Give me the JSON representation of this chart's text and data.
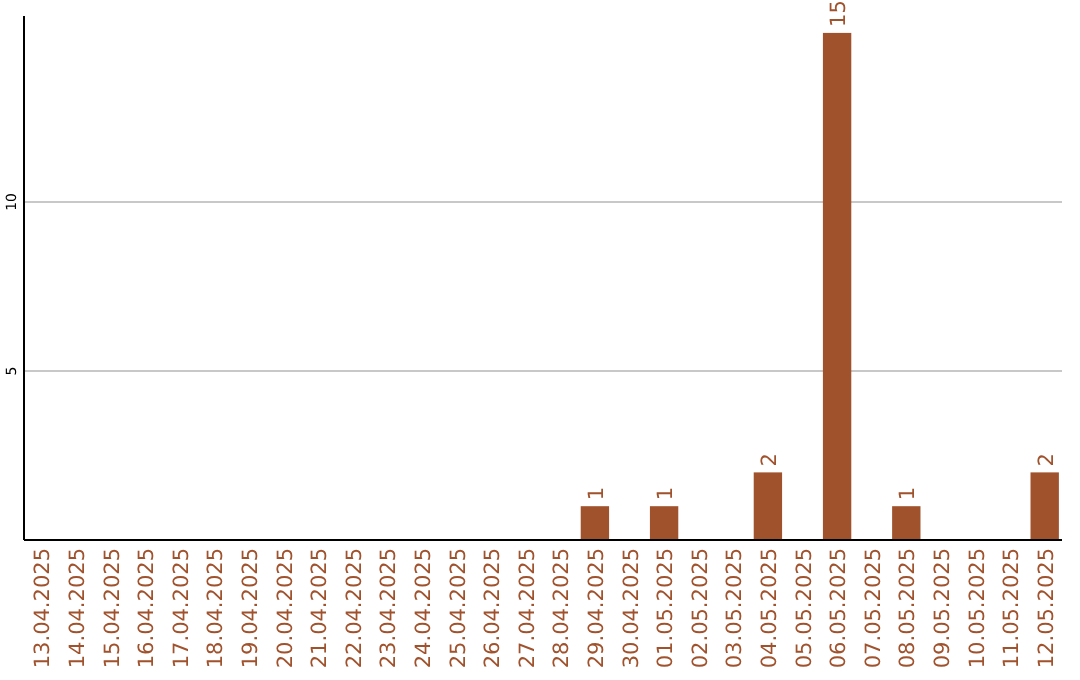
{
  "chart_data": {
    "type": "bar",
    "categories": [
      "13.04.2025",
      "14.04.2025",
      "15.04.2025",
      "16.04.2025",
      "17.04.2025",
      "18.04.2025",
      "19.04.2025",
      "20.04.2025",
      "21.04.2025",
      "22.04.2025",
      "23.04.2025",
      "24.04.2025",
      "25.04.2025",
      "26.04.2025",
      "27.04.2025",
      "28.04.2025",
      "29.04.2025",
      "30.04.2025",
      "01.05.2025",
      "02.05.2025",
      "03.05.2025",
      "04.05.2025",
      "05.05.2025",
      "06.05.2025",
      "07.05.2025",
      "08.05.2025",
      "09.05.2025",
      "10.05.2025",
      "11.05.2025",
      "12.05.2025"
    ],
    "values": [
      0,
      0,
      0,
      0,
      0,
      0,
      0,
      0,
      0,
      0,
      0,
      0,
      0,
      0,
      0,
      0,
      1,
      0,
      1,
      0,
      0,
      2,
      0,
      15,
      0,
      1,
      0,
      0,
      0,
      2
    ],
    "value_labels": [
      null,
      null,
      null,
      null,
      null,
      null,
      null,
      null,
      null,
      null,
      null,
      null,
      null,
      null,
      null,
      null,
      "1",
      null,
      "1",
      null,
      null,
      "2",
      null,
      "15",
      null,
      "1",
      null,
      null,
      null,
      "2"
    ],
    "color": "#a0522d",
    "ylim": [
      0,
      15.5
    ],
    "yticks": [
      5,
      10
    ],
    "grid": "y"
  }
}
